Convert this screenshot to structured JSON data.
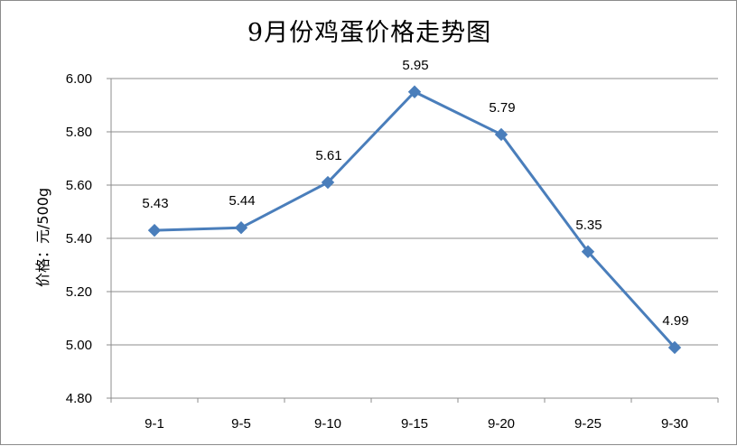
{
  "chart_data": {
    "type": "line",
    "title": "9月份鸡蛋价格走势图",
    "xlabel": "",
    "ylabel": "价格：元/500g",
    "categories": [
      "9-1",
      "9-5",
      "9-10",
      "9-15",
      "9-20",
      "9-25",
      "9-30"
    ],
    "series": [
      {
        "values": [
          5.43,
          5.44,
          5.61,
          5.95,
          5.79,
          5.35,
          4.99
        ],
        "data_labels": [
          "5.43",
          "5.44",
          "5.61",
          "5.95",
          "5.79",
          "5.35",
          "4.99"
        ]
      }
    ],
    "ylim": [
      4.8,
      6.0
    ],
    "yticks": [
      "4.80",
      "5.00",
      "5.20",
      "5.40",
      "5.60",
      "5.80",
      "6.00"
    ],
    "grid": true,
    "legend": "none",
    "line_color": "#4a7ebb",
    "marker": "diamond"
  }
}
